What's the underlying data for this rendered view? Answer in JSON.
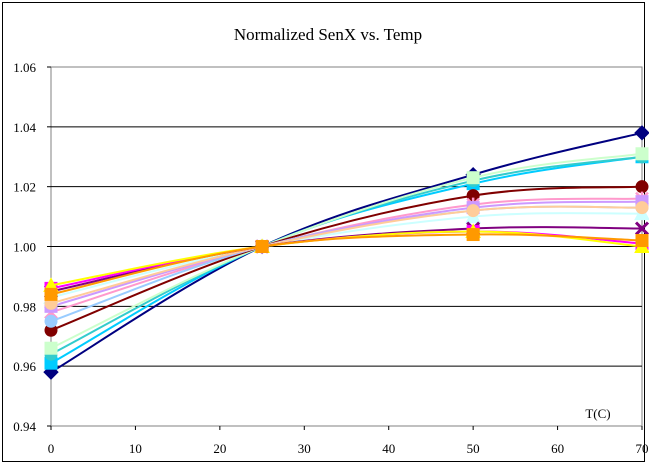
{
  "chart_data": {
    "type": "line",
    "title": "Normalized SenX vs. Temp",
    "xlabel": "T(C)",
    "ylabel": "",
    "xlim": [
      0,
      70
    ],
    "ylim": [
      0.94,
      1.06
    ],
    "x_ticks": [
      0,
      10,
      20,
      30,
      40,
      50,
      60,
      70
    ],
    "y_ticks": [
      "0.94",
      "0.96",
      "0.98",
      "1.00",
      "1.02",
      "1.04",
      "1.06"
    ],
    "grid": "horizontal",
    "legend": "none",
    "x": [
      0,
      25,
      50,
      70
    ],
    "series": [
      {
        "color": "#000080",
        "marker": "diamond",
        "values": [
          0.958,
          1.0,
          1.024,
          1.038
        ]
      },
      {
        "color": "#00CCFF",
        "marker": "square",
        "values": [
          0.961,
          1.0,
          1.021,
          1.03
        ]
      },
      {
        "color": "#33CCCC",
        "marker": "circle",
        "values": [
          0.964,
          1.0,
          1.022,
          1.03
        ]
      },
      {
        "color": "#CCFFCC",
        "marker": "square",
        "values": [
          0.966,
          1.0,
          1.023,
          1.031
        ]
      },
      {
        "color": "#800000",
        "marker": "circle",
        "values": [
          0.972,
          1.0,
          1.017,
          1.02
        ]
      },
      {
        "color": "#FF99CC",
        "marker": "star",
        "values": [
          0.978,
          1.0,
          1.014,
          1.016
        ]
      },
      {
        "color": "#99CCFF",
        "marker": "circle",
        "values": [
          0.975,
          1.0,
          1.012,
          1.013
        ]
      },
      {
        "color": "#CC99FF",
        "marker": "square",
        "values": [
          0.98,
          1.0,
          1.013,
          1.015
        ]
      },
      {
        "color": "#CCFFFF",
        "marker": "triangle",
        "values": [
          0.983,
          1.0,
          1.01,
          1.011
        ]
      },
      {
        "color": "#FFCC99",
        "marker": "circle",
        "values": [
          0.981,
          1.0,
          1.012,
          1.013
        ]
      },
      {
        "color": "#800080",
        "marker": "x",
        "values": [
          0.985,
          1.0,
          1.006,
          1.006
        ]
      },
      {
        "color": "#FF00FF",
        "marker": "square",
        "values": [
          0.986,
          1.0,
          1.005,
          1.001
        ]
      },
      {
        "color": "#FFFF00",
        "marker": "triangle",
        "values": [
          0.987,
          1.0,
          1.005,
          1.0
        ]
      },
      {
        "color": "#FF9900",
        "marker": "square",
        "values": [
          0.984,
          1.0,
          1.004,
          1.002
        ]
      }
    ]
  }
}
